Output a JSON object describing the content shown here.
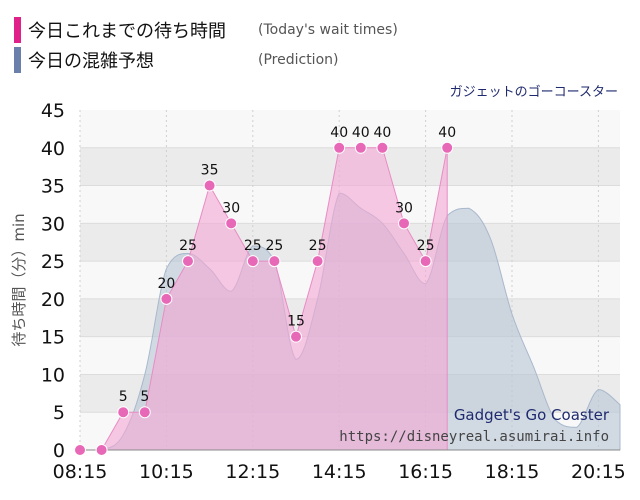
{
  "legend": {
    "today_label": "今日これまでの待ち時間",
    "today_note": "(Today's wait times)",
    "prediction_label": "今日の混雑予想",
    "prediction_note": "(Prediction)"
  },
  "credit": {
    "line1": "Gadget's Go Coaster",
    "line2": "https://disneyreal.asumirai.info"
  },
  "colors": {
    "today_swatch": "#e0218a",
    "prediction_swatch": "#6b7fab",
    "today_area": "#f4a6d3",
    "today_point": "#e868b8",
    "prediction_area": "#b8c6d6"
  },
  "chart_data": {
    "type": "area",
    "title": "ガジェットのゴーコースター",
    "xlabel": "",
    "ylabel": "待ち時間（分）min",
    "x_tick_labels": [
      "08:15",
      "10:15",
      "12:15",
      "14:15",
      "16:15",
      "18:15",
      "20:15"
    ],
    "xlim": [
      "08:15",
      "20:45"
    ],
    "ylim": [
      0,
      45
    ],
    "y_ticks": [
      0,
      5,
      10,
      15,
      20,
      25,
      30,
      35,
      40,
      45
    ],
    "grid": true,
    "series": [
      {
        "name": "今日これまでの待ち時間",
        "style": "area-with-markers",
        "data_labels_shown": true,
        "points": [
          {
            "t": "08:15",
            "v": 0
          },
          {
            "t": "08:45",
            "v": 0
          },
          {
            "t": "09:15",
            "v": 5
          },
          {
            "t": "09:45",
            "v": 5
          },
          {
            "t": "10:15",
            "v": 20
          },
          {
            "t": "10:45",
            "v": 25
          },
          {
            "t": "11:15",
            "v": 35
          },
          {
            "t": "11:45",
            "v": 30
          },
          {
            "t": "12:15",
            "v": 25
          },
          {
            "t": "12:45",
            "v": 25
          },
          {
            "t": "13:15",
            "v": 15
          },
          {
            "t": "13:45",
            "v": 25
          },
          {
            "t": "14:15",
            "v": 40
          },
          {
            "t": "14:45",
            "v": 40
          },
          {
            "t": "15:15",
            "v": 40
          },
          {
            "t": "15:45",
            "v": 30
          },
          {
            "t": "16:15",
            "v": 25
          },
          {
            "t": "16:45",
            "v": 40
          }
        ]
      },
      {
        "name": "今日の混雑予想",
        "style": "area",
        "points": [
          {
            "t": "08:15",
            "v": 0
          },
          {
            "t": "08:45",
            "v": 0
          },
          {
            "t": "09:15",
            "v": 2
          },
          {
            "t": "09:45",
            "v": 10
          },
          {
            "t": "10:15",
            "v": 24
          },
          {
            "t": "10:45",
            "v": 26
          },
          {
            "t": "11:15",
            "v": 24
          },
          {
            "t": "11:45",
            "v": 21
          },
          {
            "t": "12:15",
            "v": 27
          },
          {
            "t": "12:45",
            "v": 25
          },
          {
            "t": "13:15",
            "v": 12
          },
          {
            "t": "13:45",
            "v": 20
          },
          {
            "t": "14:15",
            "v": 34
          },
          {
            "t": "14:45",
            "v": 32
          },
          {
            "t": "15:15",
            "v": 30
          },
          {
            "t": "15:45",
            "v": 26
          },
          {
            "t": "16:15",
            "v": 22
          },
          {
            "t": "16:45",
            "v": 31
          },
          {
            "t": "17:15",
            "v": 32
          },
          {
            "t": "17:45",
            "v": 28
          },
          {
            "t": "18:15",
            "v": 18
          },
          {
            "t": "18:45",
            "v": 11
          },
          {
            "t": "19:15",
            "v": 4
          },
          {
            "t": "19:45",
            "v": 3
          },
          {
            "t": "20:15",
            "v": 8
          },
          {
            "t": "20:45",
            "v": 6
          }
        ]
      }
    ]
  }
}
